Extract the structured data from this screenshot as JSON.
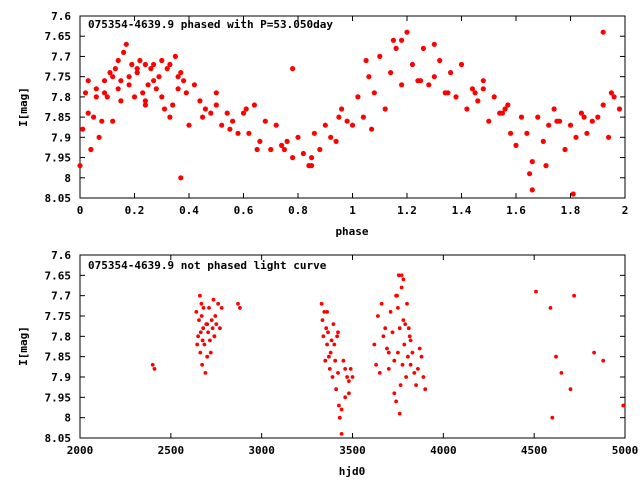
{
  "chart_data": [
    {
      "type": "scatter",
      "title": "075354-4639.9 phased with P=53.050day",
      "xlabel": "phase",
      "ylabel": "I[mag]",
      "xlim": [
        0,
        2
      ],
      "ylim": [
        7.6,
        8.05
      ],
      "y_inverted": true,
      "grid": false,
      "marker_color": "#ff0000",
      "x_ticks": [
        "0",
        "0.2",
        "0.4",
        "0.6",
        "0.8",
        "1",
        "1.2",
        "1.4",
        "1.6",
        "1.8",
        "2"
      ],
      "y_ticks": [
        "7.6",
        "7.65",
        "7.7",
        "7.75",
        "7.8",
        "7.85",
        "7.9",
        "7.95",
        "8",
        "8.05"
      ],
      "x": [
        0.0,
        0.01,
        0.02,
        0.03,
        0.04,
        0.05,
        0.06,
        0.07,
        0.08,
        0.09,
        0.1,
        0.11,
        0.12,
        0.13,
        0.14,
        0.15,
        0.16,
        0.17,
        0.18,
        0.19,
        0.2,
        0.21,
        0.22,
        0.23,
        0.24,
        0.25,
        0.26,
        0.27,
        0.28,
        0.29,
        0.3,
        0.31,
        0.32,
        0.33,
        0.34,
        0.35,
        0.36,
        0.37,
        0.38,
        0.39,
        0.4,
        0.42,
        0.44,
        0.46,
        0.48,
        0.5,
        0.52,
        0.54,
        0.56,
        0.58,
        0.6,
        0.62,
        0.64,
        0.66,
        0.68,
        0.7,
        0.72,
        0.74,
        0.76,
        0.78,
        0.8,
        0.82,
        0.84,
        0.86,
        0.88,
        0.9,
        0.92,
        0.94,
        0.96,
        0.98,
        1.0,
        1.02,
        1.04,
        1.06,
        1.08,
        1.1,
        1.12,
        1.14,
        1.16,
        1.18,
        1.2,
        1.22,
        1.24,
        1.26,
        1.28,
        1.3,
        1.32,
        1.34,
        1.36,
        1.38,
        1.4,
        1.42,
        1.44,
        1.46,
        1.48,
        1.5,
        1.52,
        1.54,
        1.56,
        1.58,
        1.6,
        1.62,
        1.64,
        1.66,
        1.68,
        1.7,
        1.72,
        1.74,
        1.76,
        1.78,
        1.8,
        1.82,
        1.84,
        1.86,
        1.88,
        1.9,
        1.92,
        1.94,
        1.96,
        1.98,
        0.03,
        0.06,
        0.09,
        0.12,
        0.15,
        0.18,
        0.21,
        0.24,
        0.27,
        0.3,
        0.33,
        0.36,
        0.45,
        0.55,
        0.65,
        0.75,
        0.85,
        0.95,
        1.05,
        1.15,
        1.25,
        1.35,
        1.45,
        1.55,
        1.65,
        1.75,
        1.85,
        1.95,
        0.37,
        0.78,
        1.81,
        1.66,
        0.24,
        0.5,
        0.85,
        1.18,
        1.48,
        1.71,
        1.92,
        0.14,
        0.61,
        1.07,
        1.3,
        1.57
      ],
      "y": [
        7.97,
        7.88,
        7.79,
        7.76,
        7.93,
        7.85,
        7.78,
        7.9,
        7.86,
        7.76,
        7.8,
        7.74,
        7.86,
        7.73,
        7.78,
        7.76,
        7.69,
        7.67,
        7.75,
        7.72,
        7.8,
        7.74,
        7.71,
        7.79,
        7.72,
        7.77,
        7.73,
        7.72,
        7.78,
        7.75,
        7.71,
        7.83,
        7.73,
        7.85,
        7.82,
        7.7,
        7.78,
        7.74,
        7.76,
        7.79,
        7.87,
        7.77,
        7.81,
        7.83,
        7.84,
        7.79,
        7.87,
        7.84,
        7.86,
        7.89,
        7.84,
        7.89,
        7.82,
        7.91,
        7.86,
        7.93,
        7.87,
        7.92,
        7.91,
        7.95,
        7.9,
        7.94,
        7.97,
        7.89,
        7.93,
        7.87,
        7.9,
        7.91,
        7.83,
        7.86,
        7.87,
        7.8,
        7.85,
        7.75,
        7.79,
        7.7,
        7.83,
        7.74,
        7.68,
        7.77,
        7.64,
        7.72,
        7.76,
        7.68,
        7.77,
        7.75,
        7.71,
        7.79,
        7.74,
        7.8,
        7.72,
        7.83,
        7.78,
        7.81,
        7.76,
        7.86,
        7.8,
        7.84,
        7.83,
        7.89,
        7.92,
        7.85,
        7.89,
        7.96,
        7.85,
        7.91,
        7.87,
        7.83,
        7.86,
        7.93,
        7.87,
        7.9,
        7.84,
        7.89,
        7.86,
        7.85,
        7.82,
        7.9,
        7.8,
        7.83,
        7.84,
        7.8,
        7.79,
        7.75,
        7.81,
        7.77,
        7.73,
        7.82,
        7.76,
        7.8,
        7.72,
        7.75,
        7.85,
        7.88,
        7.93,
        7.93,
        7.97,
        7.85,
        7.71,
        7.66,
        7.76,
        7.79,
        7.79,
        7.84,
        7.99,
        7.86,
        7.85,
        7.79,
        8.0,
        7.73,
        8.04,
        8.03,
        7.81,
        7.82,
        7.95,
        7.66,
        7.78,
        7.97,
        7.64,
        7.71,
        7.83,
        7.88,
        7.67,
        7.82
      ],
      "note": ""
    },
    {
      "type": "scatter",
      "title": "075354-4639.9 not phased light curve",
      "xlabel": "hjd0",
      "ylabel": "I[mag]",
      "xlim": [
        2000,
        5000
      ],
      "ylim": [
        7.6,
        8.05
      ],
      "y_inverted": true,
      "grid": false,
      "marker_color": "#ff0000",
      "x_ticks": [
        "2000",
        "2500",
        "3000",
        "3500",
        "4000",
        "4500",
        "5000"
      ],
      "y_ticks": [
        "7.6",
        "7.65",
        "7.7",
        "7.75",
        "7.8",
        "7.85",
        "7.9",
        "7.95",
        "8",
        "8.05"
      ],
      "x": [
        2400,
        2410,
        2640,
        2645,
        2650,
        2655,
        2660,
        2662,
        2665,
        2668,
        2670,
        2672,
        2675,
        2678,
        2680,
        2685,
        2690,
        2695,
        2700,
        2705,
        2710,
        2715,
        2720,
        2725,
        2730,
        2735,
        2740,
        2745,
        2750,
        2760,
        2770,
        2780,
        2870,
        2880,
        3330,
        3335,
        3340,
        3345,
        3350,
        3355,
        3360,
        3365,
        3370,
        3375,
        3380,
        3385,
        3390,
        3395,
        3400,
        3405,
        3410,
        3415,
        3420,
        3425,
        3430,
        3440,
        3450,
        3460,
        3470,
        3480,
        3490,
        3500,
        3620,
        3630,
        3640,
        3650,
        3660,
        3670,
        3680,
        3690,
        3700,
        3710,
        3720,
        3730,
        3740,
        3745,
        3750,
        3755,
        3760,
        3765,
        3770,
        3775,
        3780,
        3785,
        3790,
        3795,
        3800,
        3805,
        3810,
        3815,
        3820,
        3830,
        3840,
        3850,
        3860,
        3870,
        3880,
        3890,
        3900,
        4510,
        4590,
        4600,
        4620,
        4650,
        4700,
        4720,
        4830,
        4880,
        4990,
        3440,
        3460,
        3480,
        3700,
        3730,
        3760,
        2700,
        2740,
        3360,
        3420,
        3780,
        3820,
        3740,
        3750,
        3770
      ],
      "y": [
        7.87,
        7.88,
        7.74,
        7.82,
        7.8,
        7.76,
        7.7,
        7.84,
        7.79,
        7.72,
        7.75,
        7.87,
        7.81,
        7.78,
        7.73,
        7.82,
        7.89,
        7.77,
        7.85,
        7.79,
        7.73,
        7.81,
        7.84,
        7.76,
        7.78,
        7.71,
        7.8,
        7.75,
        7.77,
        7.72,
        7.78,
        7.73,
        7.72,
        7.73,
        7.72,
        7.76,
        7.8,
        7.74,
        7.86,
        7.78,
        7.82,
        7.79,
        7.85,
        7.88,
        7.84,
        7.81,
        7.9,
        7.77,
        7.82,
        7.86,
        7.93,
        7.8,
        7.89,
        7.97,
        8.0,
        8.04,
        7.86,
        7.88,
        7.9,
        7.94,
        7.88,
        7.9,
        7.82,
        7.87,
        7.75,
        7.89,
        7.72,
        7.8,
        7.78,
        7.83,
        7.88,
        7.74,
        7.79,
        7.86,
        7.96,
        7.7,
        7.84,
        7.65,
        7.78,
        7.92,
        7.68,
        7.87,
        7.66,
        7.82,
        7.77,
        7.9,
        7.72,
        7.85,
        7.78,
        7.8,
        7.87,
        7.84,
        7.89,
        7.92,
        7.88,
        7.83,
        7.85,
        7.9,
        7.93,
        7.69,
        7.73,
        8.0,
        7.85,
        7.89,
        7.93,
        7.7,
        7.84,
        7.86,
        7.97,
        7.98,
        7.95,
        7.91,
        7.84,
        7.94,
        7.99,
        7.77,
        7.8,
        7.74,
        7.79,
        7.76,
        7.81,
        7.7,
        7.73,
        7.65
      ],
      "note": ""
    }
  ]
}
